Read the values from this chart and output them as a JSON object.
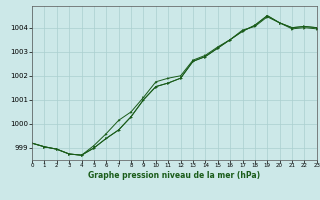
{
  "title": "Graphe pression niveau de la mer (hPa)",
  "background_color": "#cce8e8",
  "grid_color": "#aacfcf",
  "line_color": "#1a5c1a",
  "x_min": 0,
  "x_max": 23,
  "y_min": 998.5,
  "y_max": 1004.9,
  "yticks": [
    999,
    1000,
    1001,
    1002,
    1003,
    1004
  ],
  "xticks": [
    0,
    1,
    2,
    3,
    4,
    5,
    6,
    7,
    8,
    9,
    10,
    11,
    12,
    13,
    14,
    15,
    16,
    17,
    18,
    19,
    20,
    21,
    22,
    23
  ],
  "series1_x": [
    0,
    1,
    2,
    3,
    4,
    5,
    6,
    7,
    8,
    9,
    10,
    11,
    12,
    13,
    14,
    15,
    16,
    17,
    18,
    19,
    20,
    21,
    22,
    23
  ],
  "series1_y": [
    999.2,
    999.05,
    998.95,
    998.75,
    998.7,
    999.0,
    999.4,
    999.75,
    1000.3,
    1001.0,
    1001.55,
    1001.7,
    1001.9,
    1002.6,
    1002.8,
    1003.15,
    1003.5,
    1003.85,
    1004.1,
    1004.5,
    1004.2,
    1004.0,
    1004.05,
    1004.0
  ],
  "series2_x": [
    0,
    1,
    2,
    3,
    4,
    5,
    6,
    7,
    8,
    9,
    10,
    11,
    12,
    13,
    14,
    15,
    16,
    17,
    18,
    19,
    20,
    21,
    22,
    23
  ],
  "series2_y": [
    999.2,
    999.05,
    998.95,
    998.75,
    998.7,
    999.1,
    999.6,
    1000.15,
    1000.5,
    1001.1,
    1001.75,
    1001.9,
    1002.0,
    1002.65,
    1002.85,
    1003.2,
    1003.5,
    1003.9,
    1004.05,
    1004.45,
    1004.2,
    1003.95,
    1004.0,
    1003.95
  ],
  "series3_x": [
    0,
    1,
    2,
    3,
    4,
    5,
    6,
    7,
    8,
    9,
    10,
    11,
    12,
    13,
    14,
    15,
    16,
    17,
    18,
    19,
    20,
    21,
    22,
    23
  ],
  "series3_y": [
    999.2,
    999.05,
    998.95,
    998.75,
    998.7,
    999.0,
    999.4,
    999.75,
    1000.3,
    1001.0,
    1001.55,
    1001.7,
    1001.9,
    1002.6,
    1002.8,
    1003.15,
    1003.5,
    1003.85,
    1004.1,
    1004.5,
    1004.2,
    1004.0,
    1004.05,
    1004.0
  ],
  "lw": 0.7,
  "ms": 1.8
}
